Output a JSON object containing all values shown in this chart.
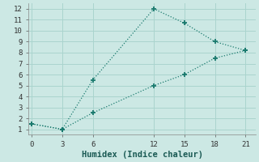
{
  "xlabel": "Humidex (Indice chaleur)",
  "ylabel": "",
  "background_color": "#cce8e4",
  "plot_bg_color": "#cce8e4",
  "grid_color": "#aad4ce",
  "line_color": "#1a7a6e",
  "x": [
    0,
    3,
    6,
    12,
    15,
    18,
    21
  ],
  "y_upper": [
    1.5,
    1.0,
    5.5,
    12.0,
    10.7,
    9.0,
    8.2
  ],
  "y_lower": [
    1.5,
    1.0,
    2.5,
    5.0,
    6.0,
    7.5,
    8.2
  ],
  "xlim": [
    -0.3,
    22.0
  ],
  "ylim": [
    0.5,
    12.5
  ],
  "xticks": [
    0,
    3,
    6,
    12,
    15,
    18,
    21
  ],
  "yticks": [
    1,
    2,
    3,
    4,
    5,
    6,
    7,
    8,
    9,
    10,
    11,
    12
  ],
  "tick_fontsize": 6.5,
  "xlabel_fontsize": 7.5
}
